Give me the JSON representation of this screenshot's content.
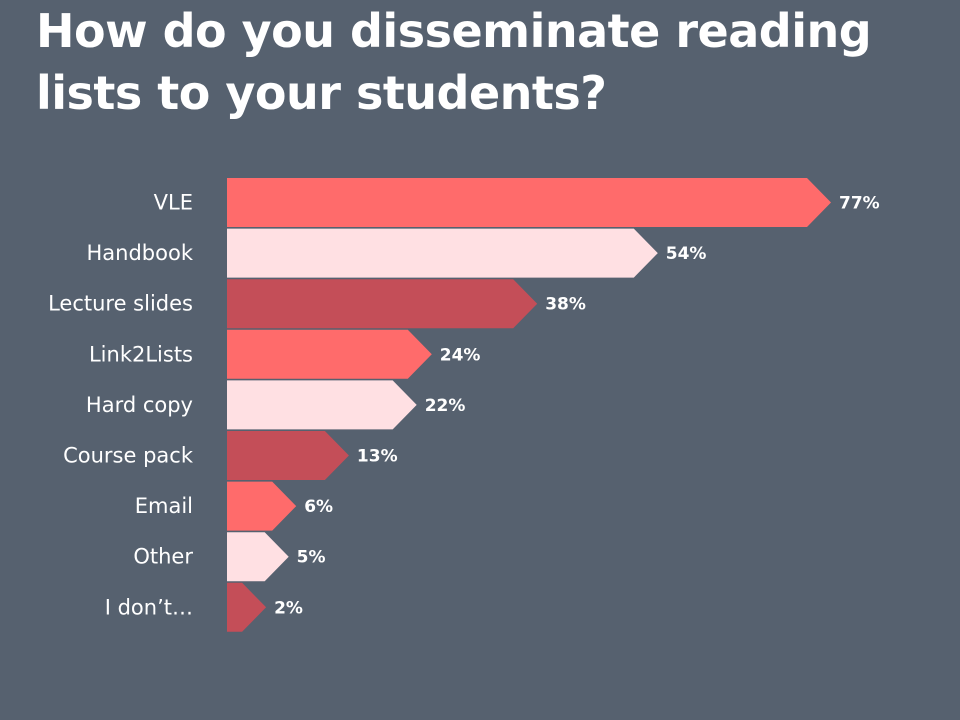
{
  "title": "How do you disseminate reading lists to your students?",
  "colors": {
    "background": "#56616f",
    "coral": "#ff6b6b",
    "pale_pink": "#ffe0e3",
    "dark_red": "#c44e58",
    "text": "#ffffff"
  },
  "chart_data": {
    "type": "bar",
    "orientation": "horizontal",
    "title": "How do you disseminate reading lists to your students?",
    "categories": [
      "VLE",
      "Handbook",
      "Lecture slides",
      "Link2Lists",
      "Hard copy",
      "Course pack",
      "Email",
      "Other",
      "I don’t…"
    ],
    "values": [
      77,
      54,
      38,
      24,
      22,
      13,
      6,
      5,
      2
    ],
    "value_labels": [
      "77%",
      "54%",
      "38%",
      "24%",
      "22%",
      "13%",
      "6%",
      "5%",
      "2%"
    ],
    "bar_colors": [
      "#ff6b6b",
      "#ffe0e3",
      "#c44e58",
      "#ff6b6b",
      "#ffe0e3",
      "#c44e58",
      "#ff6b6b",
      "#ffe0e3",
      "#c44e58"
    ],
    "xlabel": "",
    "ylabel": "",
    "xlim": [
      0,
      77
    ],
    "grid": false,
    "legend": "none",
    "bar_shape": "arrow"
  }
}
